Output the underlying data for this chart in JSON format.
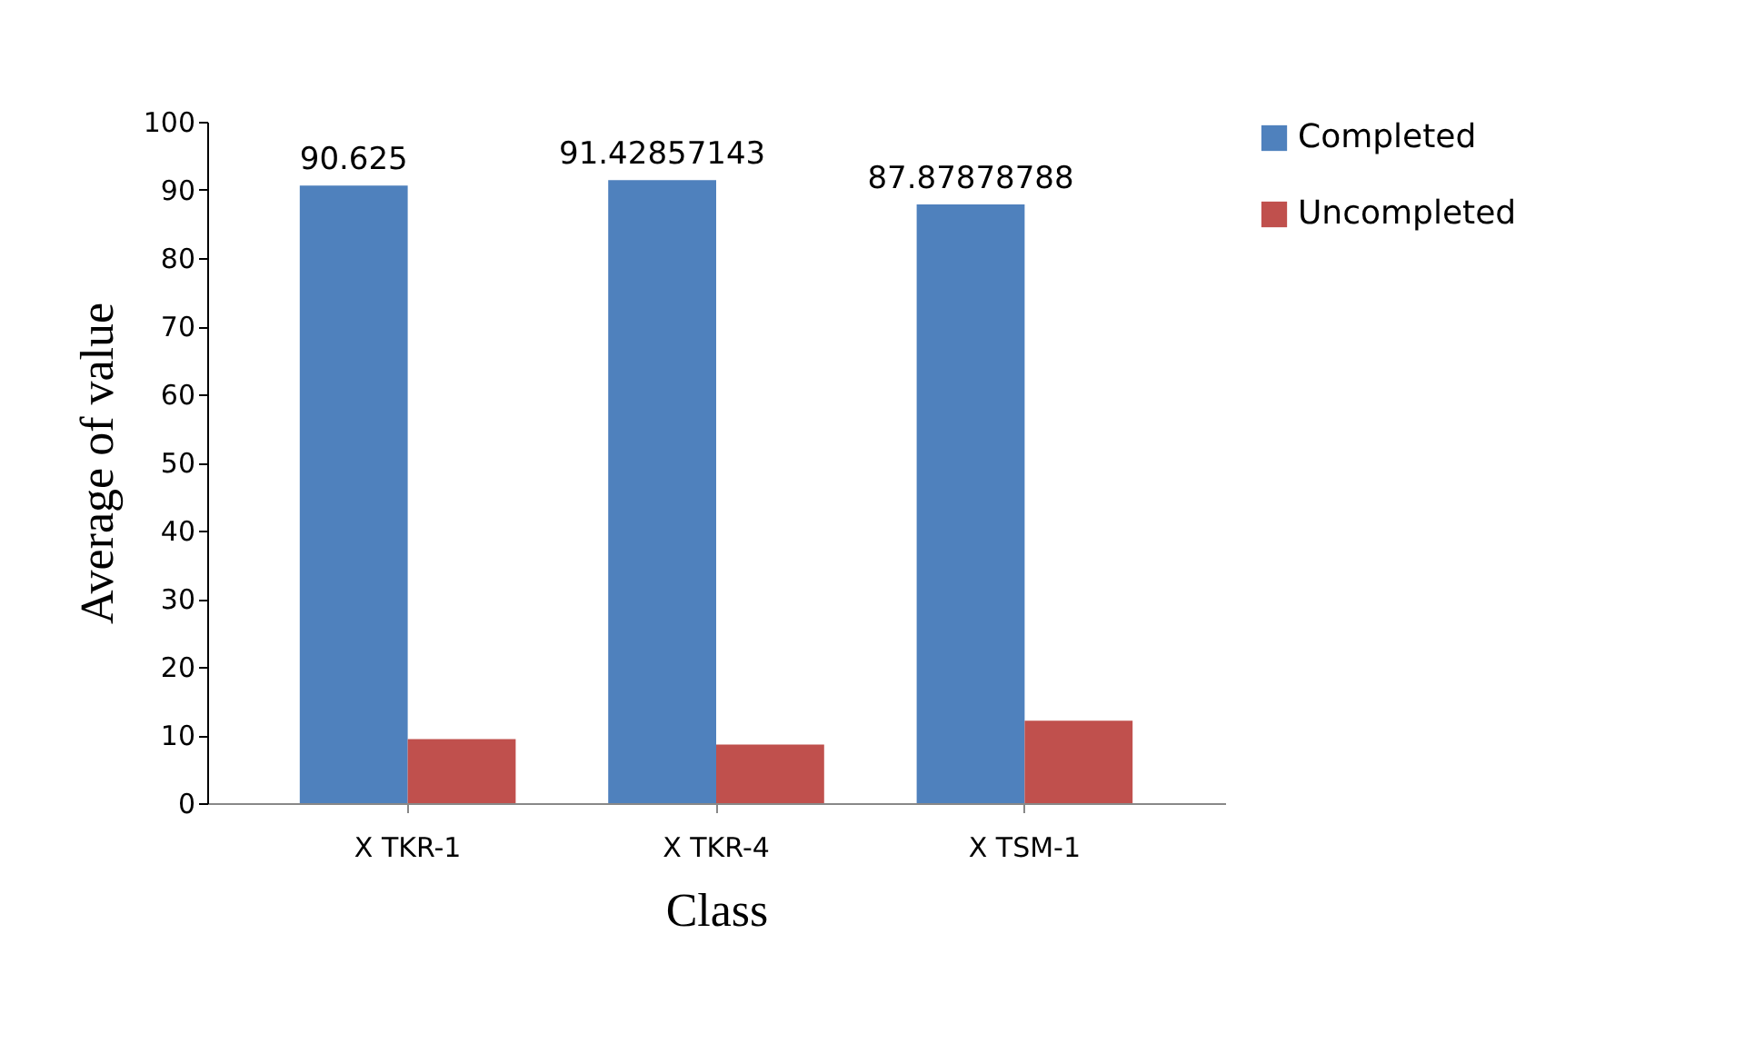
{
  "chart_data": {
    "type": "bar",
    "xlabel": "Class",
    "ylabel": "Average of value",
    "categories": [
      "X TKR-1",
      "X TKR-4",
      "X TSM-1"
    ],
    "series": [
      {
        "name": "Completed",
        "color": "#4f81bd",
        "values": [
          90.625,
          91.42857143,
          87.87878788
        ],
        "value_labels": [
          "90.625",
          "91.42857143",
          "87.87878788"
        ]
      },
      {
        "name": "Uncompleted",
        "color": "#c0504d",
        "values": [
          9.4,
          8.6,
          12.1
        ]
      }
    ],
    "ylim": [
      0,
      100
    ],
    "yticks": [
      0,
      10,
      20,
      30,
      40,
      50,
      60,
      70,
      80,
      90,
      100
    ],
    "grid": false,
    "legend": "right"
  }
}
